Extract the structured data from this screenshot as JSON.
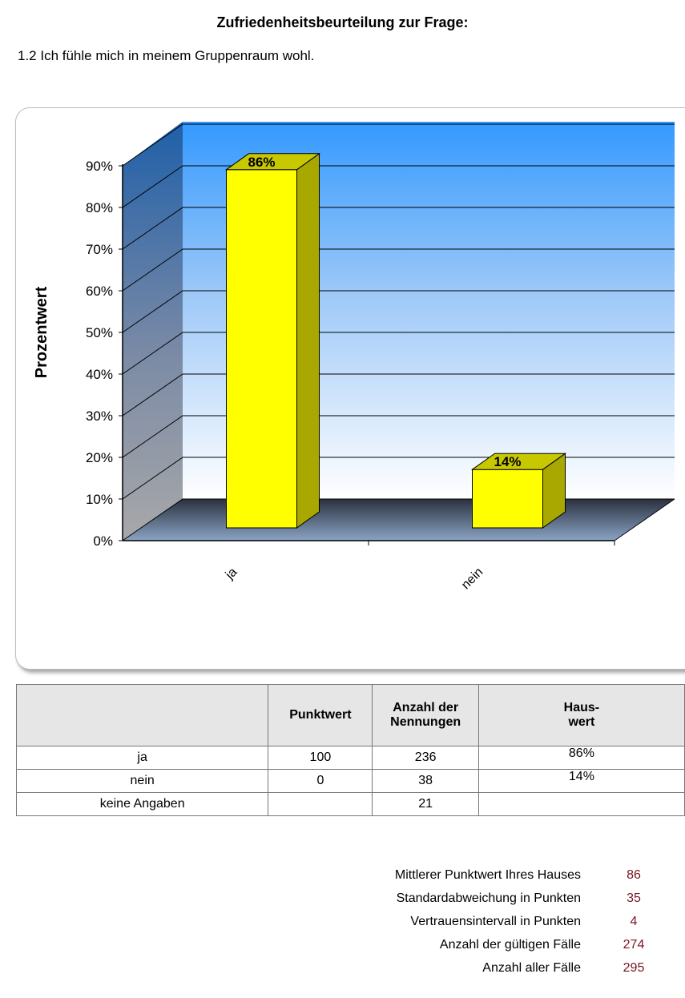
{
  "page": {
    "title": "Zufriedenheitsbeurteilung zur Frage:",
    "question": "1.2 Ich fühle mich in meinem Gruppenraum wohl."
  },
  "chart_data": {
    "type": "bar",
    "categories": [
      "ja",
      "nein"
    ],
    "values": [
      86,
      14
    ],
    "data_labels": [
      "86%",
      "14%"
    ],
    "ylabel": "Prozentwert",
    "xlabel": "",
    "ylim": [
      0,
      90
    ],
    "yticks": [
      0,
      10,
      20,
      30,
      40,
      50,
      60,
      70,
      80,
      90
    ],
    "ytick_labels": [
      "0%",
      "10%",
      "20%",
      "30%",
      "40%",
      "50%",
      "60%",
      "70%",
      "80%",
      "90%"
    ],
    "grid": true,
    "three_d": true,
    "colors": {
      "bar": "#ffff00",
      "bar_side": "#a8a800",
      "bar_top": "#c8c800",
      "wall_top": "#3399ff",
      "wall_bottom": "#ffffff"
    }
  },
  "table": {
    "headers": [
      "",
      "Punktwert",
      "Anzahl der Nennungen",
      "Haus-wert"
    ],
    "header_lines": [
      [
        ""
      ],
      [
        "Punktwert"
      ],
      [
        "Anzahl der",
        "Nennungen"
      ],
      [
        "Haus-",
        "wert"
      ]
    ],
    "rows": [
      [
        "ja",
        "100",
        "236",
        "86%"
      ],
      [
        "nein",
        "0",
        "38",
        "14%"
      ],
      [
        "keine Angaben",
        "",
        "21",
        ""
      ]
    ]
  },
  "stats": [
    {
      "label": "Mittlerer Punktwert Ihres Hauses",
      "value": "86"
    },
    {
      "label": "Standardabweichung in Punkten",
      "value": "35"
    },
    {
      "label": "Vertrauensintervall in Punkten",
      "value": "4"
    },
    {
      "label": "Anzahl der gültigen Fälle",
      "value": "274"
    },
    {
      "label": "Anzahl aller Fälle",
      "value": "295"
    }
  ]
}
